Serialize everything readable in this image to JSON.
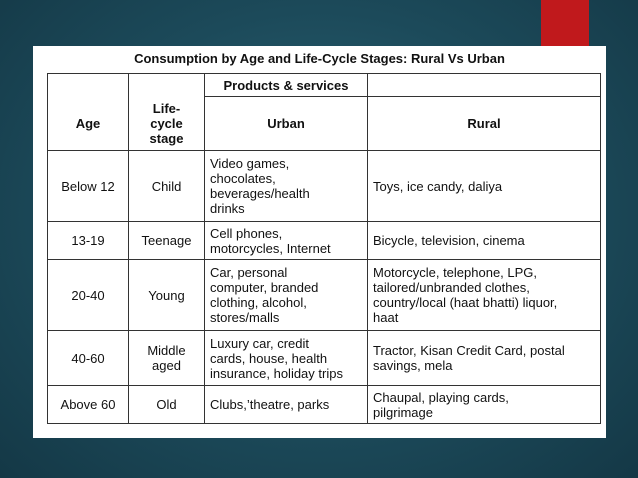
{
  "title": "Consumption by Age and Life-Cycle Stages: Rural Vs Urban",
  "header": {
    "products_services": "Products & services",
    "age": "Age",
    "life_cycle_stage": "Life-\ncycle\nstage",
    "urban": "Urban",
    "rural": "Rural"
  },
  "rows": [
    {
      "age": "Below 12",
      "stage": "Child",
      "urban": "Video games,\nchocolates,\nbeverages/health\ndrinks",
      "rural": "Toys, ice candy, daliya"
    },
    {
      "age": "13-19",
      "stage": "Teenage",
      "urban": "Cell phones,\nmotorcycles, Internet",
      "rural": "Bicycle, television, cinema"
    },
    {
      "age": "20-40",
      "stage": "Young",
      "urban": "Car, personal\ncomputer, branded\nclothing, alcohol,\nstores/malls",
      "rural": "Motorcycle, telephone, LPG,\ntailored/unbranded clothes,\ncountry/local (haat bhatti) liquor,\nhaat"
    },
    {
      "age": "40-60",
      "stage": "Middle\naged",
      "urban": "Luxury car, credit\ncards, house, health\ninsurance, holiday trips",
      "rural": "Tractor, Kisan Credit Card, postal\nsavings, mela"
    },
    {
      "age": "Above 60",
      "stage": "Old",
      "urban": "Clubs,’theatre, parks",
      "rural": "Chaupal, playing cards,\npilgrimage"
    }
  ]
}
